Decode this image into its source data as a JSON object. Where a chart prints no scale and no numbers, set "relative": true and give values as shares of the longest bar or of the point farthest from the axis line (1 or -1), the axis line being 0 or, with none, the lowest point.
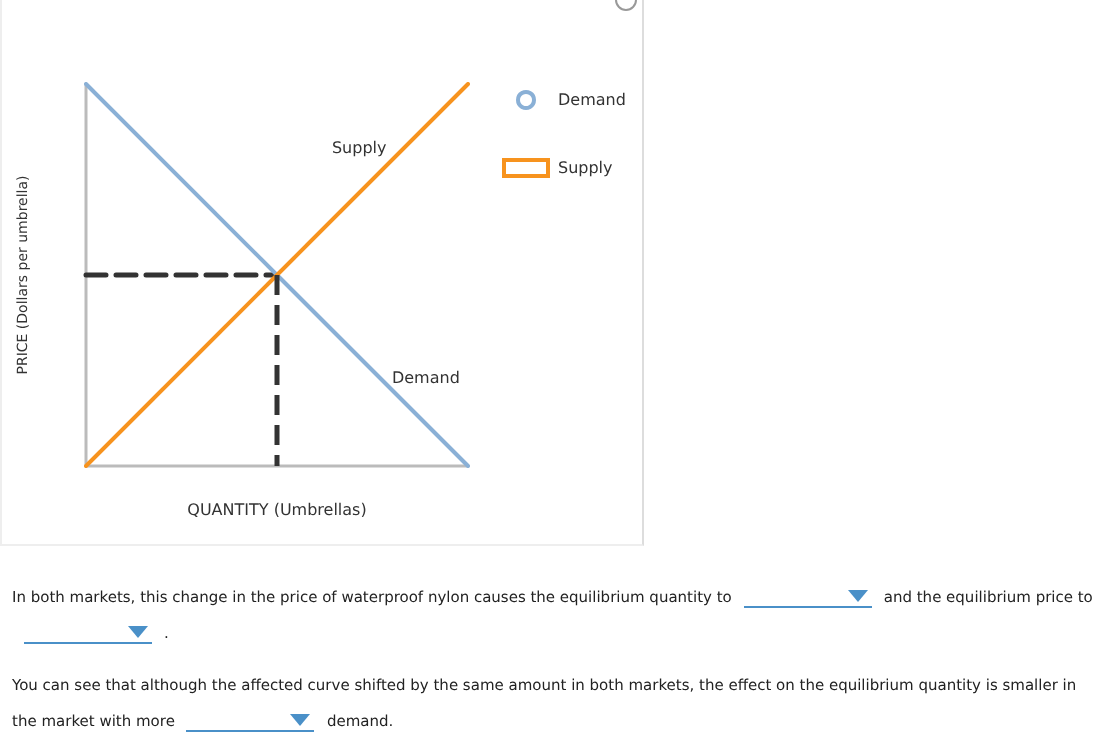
{
  "chart_data": {
    "type": "line",
    "relative": true,
    "xlabel": "QUANTITY (Umbrellas)",
    "ylabel": "PRICE (Dollars per umbrella)",
    "legend": "right",
    "grid": false,
    "categories": [
      null,
      null,
      null
    ],
    "series": [
      {
        "name": "Demand",
        "color": "#8ab0d6",
        "values": [
          1,
          0.5,
          0
        ]
      },
      {
        "name": "Supply",
        "color": "#f7931e",
        "values": [
          0,
          0.5,
          1
        ]
      },
      {
        "color": "#333333",
        "line_style": "dashed",
        "values": [
          0.5,
          0.5,
          null
        ]
      }
    ],
    "annotations": [
      "In both markets, this change in the price of waterproof nylon causes the equilibrium quantity to",
      "and the equilibrium price to",
      ".",
      "You can see that although the affected curve shifted by the same amount in both markets, the effect on the equilibrium quantity is smaller in the",
      "market with more",
      "demand."
    ]
  }
}
